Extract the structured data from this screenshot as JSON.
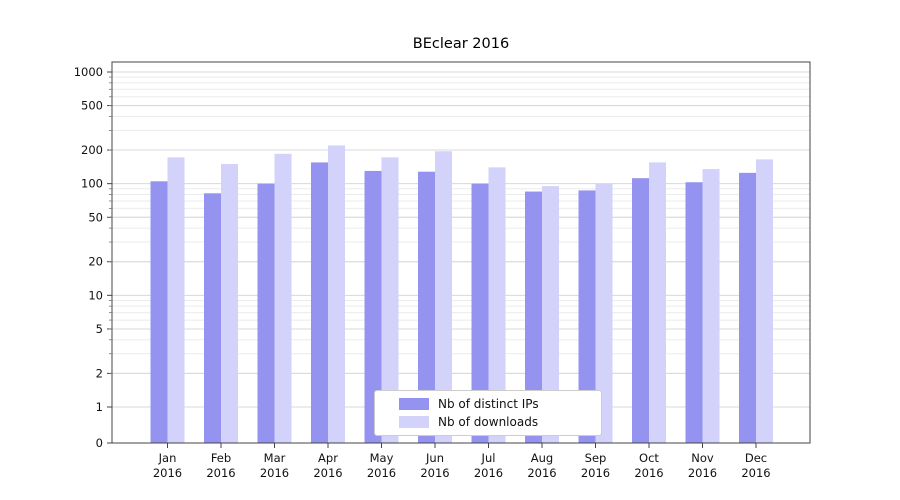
{
  "chart_data": {
    "type": "bar",
    "title": "BEclear 2016",
    "categories": [
      "Jan",
      "Feb",
      "Mar",
      "Apr",
      "May",
      "Jun",
      "Jul",
      "Aug",
      "Sep",
      "Oct",
      "Nov",
      "Dec"
    ],
    "year_label": "2016",
    "series": [
      {
        "name": "Nb of distinct IPs",
        "color": "#9494f0",
        "values": [
          105,
          82,
          100,
          155,
          130,
          128,
          100,
          85,
          87,
          112,
          103,
          125
        ]
      },
      {
        "name": "Nb of downloads",
        "color": "#d2d2fa",
        "values": [
          172,
          150,
          185,
          220,
          172,
          195,
          140,
          95,
          100,
          155,
          135,
          165
        ]
      }
    ],
    "yscale": "symlog",
    "yticks": [
      0,
      1,
      2,
      5,
      10,
      20,
      50,
      100,
      200,
      500,
      1000
    ],
    "ylim": [
      0,
      1200
    ],
    "grid": true,
    "legend_position": "lower center",
    "colors": {
      "major_grid": "#d8d8d8",
      "minor_grid": "#ebebeb",
      "spine": "#444444"
    }
  }
}
